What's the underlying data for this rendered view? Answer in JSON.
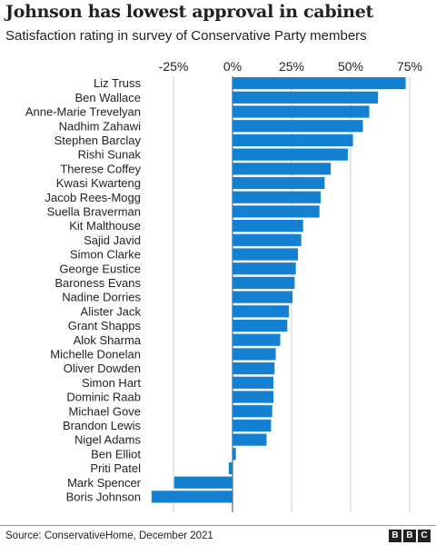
{
  "title": "Johnson has lowest approval in cabinet",
  "subtitle": "Satisfaction rating in survey of Conservative Party members",
  "source": "Source: ConservativeHome, December 2021",
  "logo": [
    "B",
    "B",
    "C"
  ],
  "colors": {
    "bar": "#1380d2",
    "grid": "#cccccc",
    "zero": "#666666"
  },
  "chart_data": {
    "type": "bar",
    "orientation": "horizontal",
    "categories": [
      "Liz Truss",
      "Ben Wallace",
      "Anne-Marie Trevelyan",
      "Nadhim Zahawi",
      "Stephen Barclay",
      "Rishi Sunak",
      "Therese Coffey",
      "Kwasi Kwarteng",
      "Jacob Rees-Mogg",
      "Suella Braverman",
      "Kit Malthouse",
      "Sajid Javid",
      "Simon Clarke",
      "George Eustice",
      "Baroness Evans",
      "Nadine Dorries",
      "Alister Jack",
      "Grant Shapps",
      "Alok Sharma",
      "Michelle Donelan",
      "Oliver Dowden",
      "Simon Hart",
      "Dominic Raab",
      "Michael Gove",
      "Brandon Lewis",
      "Nigel Adams",
      "Ben Elliot",
      "Priti Patel",
      "Mark Spencer",
      "Boris Johnson"
    ],
    "values": [
      73.3,
      61.6,
      57.9,
      55.2,
      51,
      48.8,
      41.6,
      39,
      37.3,
      36.8,
      29.9,
      29.1,
      27.7,
      26.8,
      26.3,
      25.4,
      23.9,
      23.2,
      20.2,
      18.3,
      17.8,
      17.3,
      17.3,
      16.8,
      16.3,
      14.4,
      1.4,
      -1.6,
      -24.7,
      -34.3
    ],
    "xticks": [
      -25,
      0,
      25,
      50,
      75
    ],
    "xtick_labels": [
      "-25%",
      "0%",
      "25%",
      "50%",
      "75%"
    ],
    "xlim": [
      -35,
      75
    ],
    "grid": true
  }
}
